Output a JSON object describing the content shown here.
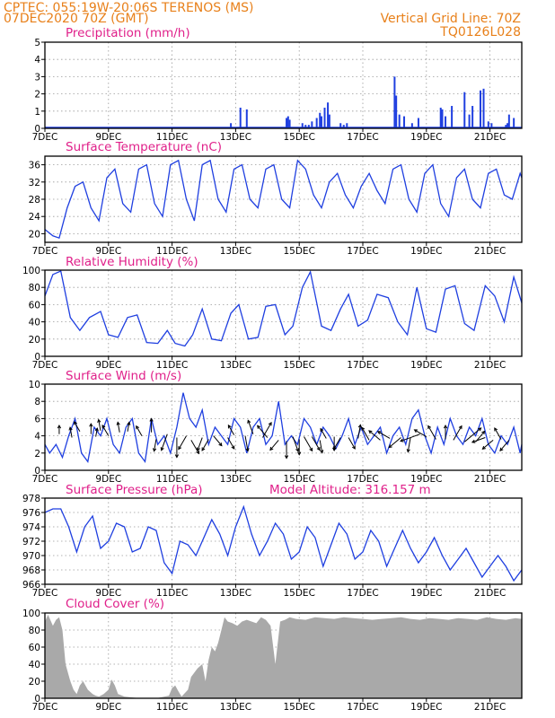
{
  "header": {
    "line1_left": "CPTEC:   055:19W-20:06S   TERENOS (MS)",
    "line2_left": "07DEC2020 70Z (GMT)",
    "line2_right": "Vertical Grid Line: 70Z",
    "line3_right": "TQ0126L028"
  },
  "colors": {
    "header": "#e8801a",
    "panel_title": "#e0208a",
    "line": "#1f3fe0",
    "bar": "#1f3fe0",
    "cloud": "#a9a9a9",
    "arrow": "#000000"
  },
  "chart_data": [
    {
      "id": "precip",
      "type": "bar",
      "title": "Precipitation (mm/h)",
      "ylim": [
        0,
        5
      ],
      "yticks": [
        0,
        1,
        2,
        3,
        4,
        5
      ],
      "xlim": [
        0,
        15
      ],
      "x_tick_positions": [
        0,
        2,
        4,
        6,
        8,
        10,
        12,
        14
      ],
      "x_tick_labels": [
        "7DEC",
        "9DEC",
        "11DEC",
        "13DEC",
        "15DEC",
        "17DEC",
        "19DEC",
        "21DEC"
      ],
      "x": [
        5.85,
        6.15,
        6.35,
        7.6,
        7.65,
        7.7,
        8.1,
        8.2,
        8.3,
        8.4,
        8.55,
        8.65,
        8.7,
        8.8,
        8.9,
        8.95,
        9.3,
        9.4,
        9.5,
        11.0,
        11.05,
        11.15,
        11.3,
        11.55,
        11.75,
        12.45,
        12.5,
        12.6,
        12.8,
        13.2,
        13.35,
        13.45,
        13.7,
        13.8,
        13.95,
        14.05,
        14.5,
        14.55,
        14.6,
        14.75
      ],
      "values": [
        0.3,
        1.2,
        1.1,
        0.6,
        0.7,
        0.5,
        0.3,
        0.2,
        0.2,
        0.4,
        0.6,
        0.9,
        0.7,
        1.2,
        1.5,
        0.8,
        0.3,
        0.2,
        0.3,
        3.0,
        1.9,
        0.8,
        0.7,
        0.3,
        0.6,
        1.2,
        1.1,
        0.7,
        1.3,
        2.1,
        0.8,
        1.3,
        2.2,
        2.3,
        0.4,
        0.3,
        0.2,
        0.3,
        0.8,
        0.6
      ],
      "baseline_level": 0.05
    },
    {
      "id": "temp",
      "type": "line",
      "title": "Surface Temperature (nC)",
      "ylim": [
        18,
        38
      ],
      "yticks": [
        20,
        24,
        28,
        32,
        36
      ],
      "xlim": [
        0,
        15
      ],
      "x_tick_positions": [
        0,
        2,
        4,
        6,
        8,
        10,
        12,
        14
      ],
      "x_tick_labels": [
        "7DEC",
        "9DEC",
        "11DEC",
        "13DEC",
        "15DEC",
        "17DEC",
        "19DEC",
        "21DEC"
      ],
      "x": [
        0,
        0.25,
        0.45,
        0.7,
        0.95,
        1.2,
        1.45,
        1.7,
        1.95,
        2.2,
        2.45,
        2.7,
        2.95,
        3.2,
        3.45,
        3.7,
        3.95,
        4.2,
        4.45,
        4.7,
        4.95,
        5.2,
        5.45,
        5.7,
        5.95,
        6.2,
        6.45,
        6.7,
        6.95,
        7.2,
        7.45,
        7.7,
        7.95,
        8.2,
        8.45,
        8.7,
        8.95,
        9.2,
        9.45,
        9.7,
        9.95,
        10.2,
        10.45,
        10.7,
        10.95,
        11.2,
        11.45,
        11.7,
        11.95,
        12.2,
        12.45,
        12.7,
        12.95,
        13.2,
        13.45,
        13.7,
        13.95,
        14.2,
        14.45,
        14.7,
        14.95,
        15.0
      ],
      "values": [
        21,
        19.5,
        19,
        26,
        31,
        32,
        26,
        23,
        33,
        35,
        27,
        25,
        35,
        36,
        27,
        24,
        36,
        37,
        28,
        23,
        36,
        37,
        28,
        25,
        35,
        36,
        28,
        26,
        35,
        36,
        28,
        26,
        37,
        35,
        29,
        26,
        32,
        34,
        29,
        26,
        31,
        34,
        30,
        27,
        35,
        36,
        28,
        25,
        34,
        36,
        27,
        24,
        33,
        35,
        28,
        26,
        34,
        35,
        29,
        28,
        34,
        33
      ]
    },
    {
      "id": "rh",
      "type": "line",
      "title": "Relative Humidity (%)",
      "ylim": [
        0,
        100
      ],
      "yticks": [
        0,
        20,
        40,
        60,
        80,
        100
      ],
      "xlim": [
        0,
        15
      ],
      "x_tick_positions": [
        0,
        2,
        4,
        6,
        8,
        10,
        12,
        14
      ],
      "x_tick_labels": [
        "7DEC",
        "9DEC",
        "11DEC",
        "13DEC",
        "15DEC",
        "17DEC",
        "19DEC",
        "21DEC"
      ],
      "x": [
        0,
        0.25,
        0.5,
        0.8,
        1.1,
        1.4,
        1.75,
        2.0,
        2.3,
        2.6,
        2.9,
        3.2,
        3.55,
        3.85,
        4.1,
        4.4,
        4.65,
        4.95,
        5.25,
        5.55,
        5.85,
        6.1,
        6.4,
        6.7,
        6.95,
        7.25,
        7.55,
        7.8,
        8.1,
        8.35,
        8.7,
        9.0,
        9.3,
        9.55,
        9.85,
        10.15,
        10.45,
        10.8,
        11.1,
        11.4,
        11.7,
        12.0,
        12.3,
        12.6,
        12.9,
        13.2,
        13.5,
        13.85,
        14.15,
        14.45,
        14.75,
        15.0
      ],
      "values": [
        70,
        95,
        99,
        45,
        30,
        45,
        52,
        25,
        22,
        45,
        48,
        16,
        15,
        30,
        15,
        12,
        25,
        55,
        20,
        18,
        50,
        60,
        20,
        22,
        58,
        60,
        25,
        35,
        80,
        98,
        35,
        30,
        55,
        72,
        35,
        42,
        72,
        68,
        40,
        25,
        80,
        32,
        28,
        78,
        82,
        38,
        30,
        82,
        70,
        40,
        92,
        62
      ]
    },
    {
      "id": "wind",
      "type": "line",
      "title": "Surface Wind (m/s)",
      "ylim": [
        0,
        10
      ],
      "yticks": [
        0,
        2,
        4,
        6,
        8,
        10
      ],
      "xlim": [
        0,
        15
      ],
      "x_tick_positions": [
        0,
        2,
        4,
        6,
        8,
        10,
        12,
        14
      ],
      "x_tick_labels": [
        "7DEC",
        "9DEC",
        "11DEC",
        "13DEC",
        "15DEC",
        "17DEC",
        "19DEC",
        "21DEC"
      ],
      "x": [
        0,
        0.15,
        0.35,
        0.55,
        0.75,
        0.95,
        1.15,
        1.35,
        1.55,
        1.75,
        1.95,
        2.15,
        2.35,
        2.55,
        2.75,
        2.95,
        3.15,
        3.35,
        3.55,
        3.75,
        3.95,
        4.15,
        4.35,
        4.55,
        4.75,
        4.95,
        5.15,
        5.35,
        5.55,
        5.75,
        5.95,
        6.15,
        6.35,
        6.55,
        6.75,
        6.95,
        7.15,
        7.35,
        7.55,
        7.75,
        7.95,
        8.15,
        8.35,
        8.55,
        8.75,
        8.95,
        9.15,
        9.35,
        9.55,
        9.75,
        9.95,
        10.15,
        10.35,
        10.55,
        10.75,
        10.95,
        11.15,
        11.35,
        11.55,
        11.75,
        11.95,
        12.15,
        12.35,
        12.55,
        12.75,
        12.95,
        13.15,
        13.35,
        13.55,
        13.75,
        13.95,
        14.15,
        14.35,
        14.55,
        14.75,
        14.95,
        15.0
      ],
      "values": [
        3,
        2,
        3,
        1.5,
        4,
        6,
        2,
        1,
        5,
        4,
        6,
        3,
        2,
        5,
        6,
        2,
        1,
        6,
        3,
        4,
        2,
        5,
        9,
        6,
        5,
        7,
        3,
        5,
        4,
        3,
        6,
        5,
        2,
        5,
        6,
        3,
        4,
        8,
        3,
        4,
        3,
        6,
        5,
        3,
        5,
        4,
        2.5,
        4,
        6,
        3,
        5,
        3,
        4,
        5,
        2,
        4,
        5,
        3,
        6,
        7,
        4,
        2,
        5,
        3,
        6,
        4,
        3,
        5,
        4,
        6,
        3,
        2,
        4,
        3,
        5,
        2,
        3
      ],
      "arrow_x": [
        0.45,
        0.85,
        1.1,
        1.45,
        1.6,
        1.75,
        2.0,
        2.35,
        2.6,
        3.05,
        3.35,
        3.5,
        3.85,
        4.15,
        4.45,
        4.6,
        4.95,
        5.15,
        5.3,
        5.75,
        5.95,
        6.3,
        6.55,
        6.85,
        7.0,
        7.35,
        7.6,
        7.8,
        8.0,
        8.15,
        8.4,
        8.65,
        8.85,
        9.1,
        9.3,
        9.55,
        9.85,
        10.2,
        10.55,
        10.85,
        11.2,
        11.5,
        11.8,
        12.0,
        12.3,
        12.6,
        12.85,
        13.2,
        13.55,
        13.85,
        14.1,
        14.35,
        14.6
      ],
      "arrow_y": [
        4.2,
        3.8,
        4.5,
        4.2,
        3.9,
        4.6,
        4.0,
        4.4,
        4.5,
        4.0,
        4.4,
        3.6,
        4.2,
        3.8,
        4.0,
        3.5,
        3.8,
        3.6,
        4.0,
        3.8,
        4.1,
        4.0,
        4.2,
        3.8,
        3.8,
        3.5,
        3.4,
        3.9,
        3.6,
        3.9,
        3.9,
        3.5,
        3.7,
        3.9,
        3.8,
        3.8,
        3.7,
        3.5,
        3.5,
        3.7,
        3.8,
        3.8,
        4.2,
        3.9,
        3.6,
        3.6,
        3.5,
        3.3,
        3.3,
        3.8,
        3.5,
        3.6,
        3.5
      ],
      "arrow_dir_deg": [
        90,
        100,
        120,
        90,
        80,
        100,
        120,
        100,
        80,
        120,
        90,
        260,
        250,
        270,
        240,
        300,
        250,
        240,
        310,
        300,
        120,
        280,
        110,
        60,
        130,
        230,
        270,
        290,
        270,
        300,
        300,
        280,
        120,
        270,
        240,
        300,
        80,
        120,
        140,
        150,
        220,
        260,
        200,
        150,
        120,
        90,
        60,
        40,
        50,
        200,
        220,
        120,
        230
      ],
      "arrow_len_ms": [
        1.0,
        1.2,
        1.3,
        1.2,
        1.0,
        1.3,
        1.4,
        1.2,
        1.1,
        1.3,
        1.6,
        1.4,
        2.0,
        2.3,
        1.8,
        1.8,
        1.6,
        1.5,
        1.5,
        1.5,
        1.3,
        1.8,
        1.7,
        2.0,
        1.8,
        1.5,
        2.0,
        1.8,
        1.8,
        1.9,
        1.8,
        1.5,
        1.3,
        1.6,
        1.6,
        1.5,
        1.6,
        1.7,
        1.7,
        1.6,
        1.8,
        1.7,
        2.4,
        1.6,
        1.8,
        1.6,
        1.9,
        2.5,
        1.6,
        1.6,
        1.6,
        1.5,
        1.6
      ]
    },
    {
      "id": "pres",
      "type": "line",
      "title": "Surface Pressure (hPa)",
      "annotation": "Model Altitude: 316.157 m",
      "ylim": [
        966,
        978
      ],
      "yticks": [
        966,
        968,
        970,
        972,
        974,
        976,
        978
      ],
      "xlim": [
        0,
        15
      ],
      "x_tick_positions": [
        0,
        2,
        4,
        6,
        8,
        10,
        12,
        14
      ],
      "x_tick_labels": [
        "7DEC",
        "9DEC",
        "11DEC",
        "13DEC",
        "15DEC",
        "17DEC",
        "19DEC",
        "21DEC"
      ],
      "x": [
        0,
        0.25,
        0.5,
        0.75,
        1.0,
        1.25,
        1.5,
        1.75,
        2.0,
        2.25,
        2.5,
        2.75,
        3.0,
        3.25,
        3.5,
        3.75,
        4.0,
        4.25,
        4.5,
        4.75,
        5.0,
        5.25,
        5.5,
        5.75,
        6.0,
        6.25,
        6.5,
        6.75,
        7.0,
        7.25,
        7.5,
        7.75,
        8.0,
        8.25,
        8.5,
        8.75,
        9.0,
        9.25,
        9.5,
        9.75,
        10.0,
        10.25,
        10.5,
        10.75,
        11.0,
        11.25,
        11.5,
        11.75,
        12.0,
        12.25,
        12.5,
        12.75,
        13.0,
        13.25,
        13.5,
        13.75,
        14.0,
        14.25,
        14.5,
        14.75,
        15.0
      ],
      "values": [
        976,
        976.5,
        976.5,
        974,
        970.5,
        974,
        975.5,
        971,
        972,
        974.5,
        974,
        970.5,
        971,
        974,
        973.5,
        969,
        967.5,
        972,
        971.5,
        970,
        972.5,
        975,
        973,
        970,
        974,
        976.8,
        973,
        970,
        972,
        974.5,
        973,
        969.5,
        970.5,
        974,
        972.5,
        968.5,
        971.5,
        974.5,
        973,
        969.5,
        970.5,
        973.5,
        972,
        968.5,
        971,
        973.5,
        971,
        969,
        970.5,
        972.5,
        970,
        968,
        969.5,
        971,
        969,
        967,
        968.5,
        970,
        968.5,
        966.5,
        968
      ]
    },
    {
      "id": "cloud",
      "type": "area",
      "title": "Cloud Cover (%)",
      "ylim": [
        0,
        100
      ],
      "yticks": [
        0,
        20,
        40,
        60,
        80,
        100
      ],
      "xlim": [
        0,
        15
      ],
      "x_tick_positions": [
        0,
        2,
        4,
        6,
        8,
        10,
        12,
        14
      ],
      "x_tick_labels": [
        "7DEC",
        "9DEC",
        "11DEC",
        "13DEC",
        "15DEC",
        "17DEC",
        "19DEC",
        "21DEC"
      ],
      "x": [
        0,
        0.1,
        0.25,
        0.35,
        0.45,
        0.55,
        0.65,
        0.8,
        0.9,
        1.0,
        1.1,
        1.2,
        1.35,
        1.5,
        1.6,
        1.7,
        1.85,
        2.0,
        2.1,
        2.2,
        2.3,
        2.5,
        3.0,
        3.5,
        3.9,
        4.0,
        4.1,
        4.2,
        4.3,
        4.5,
        4.6,
        4.8,
        4.95,
        5.05,
        5.15,
        5.25,
        5.35,
        5.45,
        5.55,
        5.65,
        5.75,
        5.9,
        6.05,
        6.2,
        6.35,
        6.5,
        6.65,
        6.8,
        6.95,
        7.1,
        7.25,
        7.4,
        7.55,
        7.7,
        7.9,
        8.2,
        8.5,
        8.8,
        9.1,
        9.4,
        9.7,
        10.0,
        10.3,
        10.6,
        10.9,
        11.2,
        11.5,
        11.8,
        12.1,
        12.4,
        12.7,
        13.0,
        13.3,
        13.6,
        13.9,
        14.2,
        14.5,
        14.8,
        15.0
      ],
      "values": [
        90,
        98,
        85,
        92,
        95,
        80,
        40,
        20,
        10,
        5,
        15,
        20,
        10,
        5,
        3,
        2,
        5,
        10,
        22,
        15,
        5,
        2,
        0,
        0,
        3,
        12,
        15,
        8,
        2,
        10,
        25,
        35,
        40,
        20,
        45,
        60,
        55,
        65,
        80,
        95,
        90,
        88,
        85,
        90,
        92,
        90,
        88,
        95,
        92,
        85,
        40,
        90,
        92,
        95,
        93,
        92,
        95,
        94,
        93,
        95,
        94,
        93,
        92,
        93,
        94,
        95,
        93,
        92,
        94,
        93,
        92,
        94,
        93,
        92,
        95,
        93,
        92,
        94,
        93
      ]
    }
  ]
}
